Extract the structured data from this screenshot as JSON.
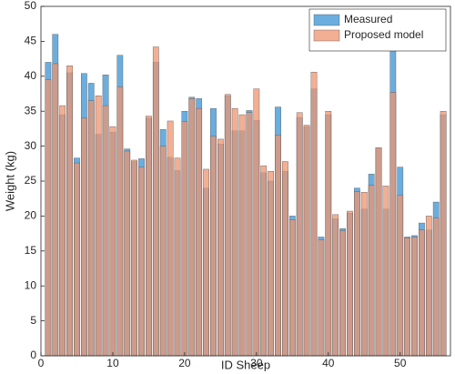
{
  "chart_data": {
    "type": "bar",
    "x_label": "ID Sheep",
    "y_label": "Weight (kg)",
    "x": [
      1,
      2,
      3,
      4,
      5,
      6,
      7,
      8,
      9,
      10,
      11,
      12,
      13,
      14,
      15,
      16,
      17,
      18,
      19,
      20,
      21,
      22,
      23,
      24,
      25,
      26,
      27,
      28,
      29,
      30,
      31,
      32,
      33,
      34,
      35,
      36,
      37,
      38,
      39,
      40,
      41,
      42,
      43,
      44,
      45,
      46,
      47,
      48,
      49,
      50,
      51,
      52,
      53,
      54,
      55,
      56
    ],
    "series": [
      {
        "name": "Measured",
        "color": "#6aaee0",
        "values": [
          42,
          46,
          34.5,
          40.5,
          28.3,
          40.4,
          39,
          31.7,
          40.2,
          32,
          43,
          29.6,
          27.8,
          28.2,
          34,
          42,
          32.4,
          28.4,
          26.5,
          35,
          37,
          36.8,
          24,
          35.4,
          30.3,
          37.2,
          32.2,
          32.2,
          35.1,
          33.7,
          26.2,
          25,
          35.6,
          26.4,
          20,
          34.1,
          32.8,
          38.2,
          17,
          34.5,
          19.6,
          18.2,
          20.4,
          24,
          21,
          26,
          29.7,
          21,
          44,
          27,
          17,
          17.2,
          19,
          18,
          22,
          34.5
        ]
      },
      {
        "name": "Proposed model",
        "color": "#ee9470",
        "values": [
          39.5,
          41.8,
          35.8,
          41.5,
          27.6,
          34,
          36.5,
          37.2,
          35.8,
          32.8,
          38.5,
          29.3,
          28,
          27,
          34.3,
          44.2,
          30,
          33.6,
          28.3,
          33.5,
          36.8,
          35.4,
          26.7,
          31.4,
          31,
          37.4,
          35.4,
          34.5,
          34.8,
          38.2,
          27.2,
          26.4,
          31.6,
          27.8,
          19.5,
          34.8,
          33,
          40.6,
          16.6,
          35,
          20.2,
          17.9,
          20.7,
          23.5,
          23.4,
          24.4,
          29.8,
          24.3,
          37.7,
          23,
          16.9,
          17,
          18,
          20,
          19.7,
          35
        ]
      }
    ],
    "xlim": [
      0,
      57
    ],
    "xticks": [
      0,
      10,
      20,
      30,
      40,
      50
    ],
    "ylim": [
      0,
      50
    ],
    "yticks": [
      0,
      5,
      10,
      15,
      20,
      25,
      30,
      35,
      40,
      45,
      50
    ],
    "legend": "top-right"
  }
}
